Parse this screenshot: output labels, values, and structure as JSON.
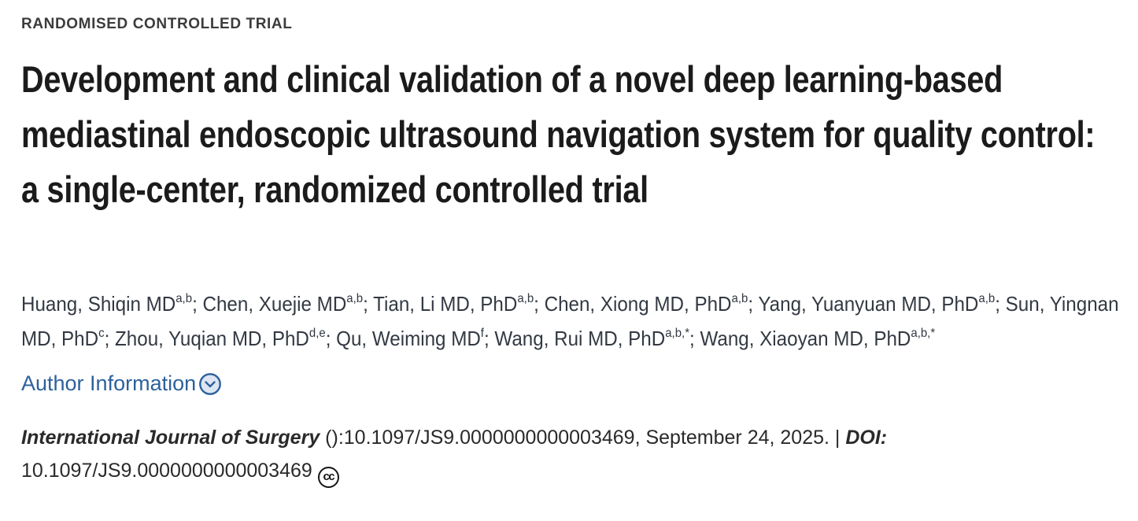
{
  "page": {
    "eyebrow": "RANDOMISED CONTROLLED TRIAL",
    "title": "Development and clinical validation of a novel deep learning-based mediastinal endoscopic ultrasound navigation system for quality control: a single-center, randomized controlled trial"
  },
  "authors": {
    "separator": "; ",
    "items": [
      {
        "name": "Huang, Shiqin MD",
        "sup": "a,b"
      },
      {
        "name": "Chen, Xuejie MD",
        "sup": "a,b"
      },
      {
        "name": "Tian, Li MD, PhD",
        "sup": "a,b"
      },
      {
        "name": "Chen, Xiong MD, PhD",
        "sup": "a,b"
      },
      {
        "name": "Yang, Yuanyuan MD, PhD",
        "sup": "a,b"
      },
      {
        "name": "Sun, Yingnan MD, PhD",
        "sup": "c"
      },
      {
        "name": "Zhou, Yuqian MD, PhD",
        "sup": "d,e"
      },
      {
        "name": "Qu, Weiming MD",
        "sup": "f"
      },
      {
        "name": "Wang, Rui MD, PhD",
        "sup": "a,b,*"
      },
      {
        "name": "Wang, Xiaoyan MD, PhD",
        "sup": "a,b,*"
      }
    ]
  },
  "author_info": {
    "label": "Author Information",
    "icon": "chevron-down-circle"
  },
  "citation": {
    "journal": "International Journal of Surgery",
    "rest": " ():10.1097/JS9.0000000000003469, September 24, 2025. | ",
    "doi_label": "DOI:",
    "doi_value": " 10.1097/JS9.0000000000003469",
    "license_glyph": "cc",
    "license_icon": "creative-commons"
  },
  "colors": {
    "link_blue": "#2d619b",
    "title_text": "#1b1b1b",
    "body_text": "#333942",
    "icon_fill": "#dde6f2"
  }
}
